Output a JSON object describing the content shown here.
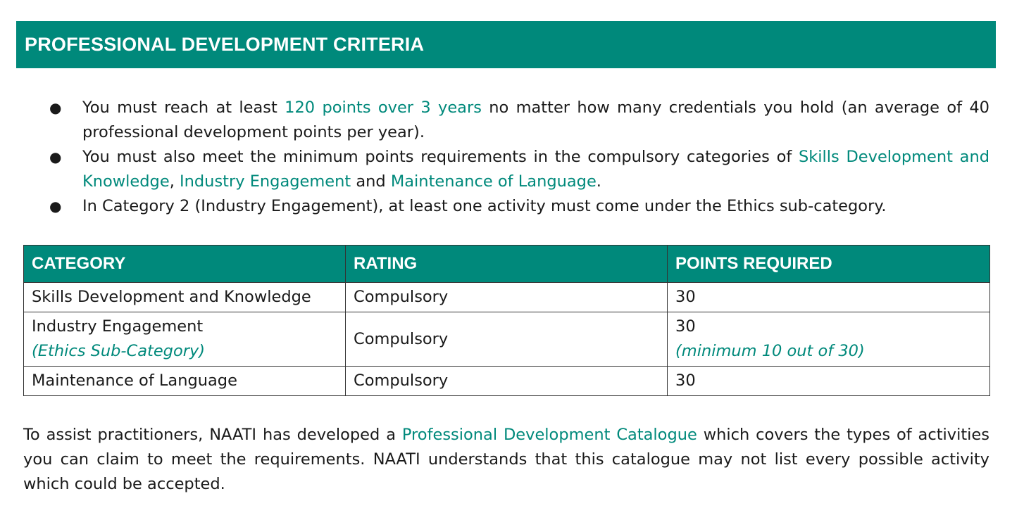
{
  "banner": {
    "title": "PROFESSIONAL DEVELOPMENT CRITERIA"
  },
  "bullets": [
    {
      "pre": "You must reach at least ",
      "highlight": "120 points over 3 years",
      "post": " no matter how many credentials you hold (an average of 40 professional development points per year)."
    },
    {
      "pre": "You must also meet the minimum points requirements in the compulsory categories of ",
      "link1": "Skills Development and Knowledge",
      "sep1": ", ",
      "link2": "Industry Engagement",
      "sep2": " and ",
      "link3": "Maintenance of Language",
      "post": "."
    },
    {
      "text": "In Category 2 (Industry Engagement), at least one activity must come under the Ethics sub-category."
    }
  ],
  "table": {
    "headers": [
      "CATEGORY",
      "RATING",
      "POINTS REQUIRED"
    ],
    "rows": [
      {
        "category": "Skills Development and Knowledge",
        "sub": "",
        "rating": "Compulsory",
        "points": "30",
        "points_note": ""
      },
      {
        "category": "Industry Engagement",
        "sub": "(Ethics Sub-Category)",
        "rating": "Compulsory",
        "points": "30",
        "points_note": "(minimum 10 out of 30)"
      },
      {
        "category": "Maintenance of Language",
        "sub": "",
        "rating": "Compulsory",
        "points": "30",
        "points_note": ""
      }
    ]
  },
  "footer": {
    "pre": "To assist practitioners, NAATI has developed a ",
    "link": "Professional Development Catalogue",
    "post": " which covers the types of activities you can claim to meet the requirements. NAATI understands that this catalogue may not list every possible activity which could be accepted."
  },
  "colors": {
    "accent": "#00897b",
    "text": "#1a1a1a",
    "header_text": "#ffffff"
  }
}
